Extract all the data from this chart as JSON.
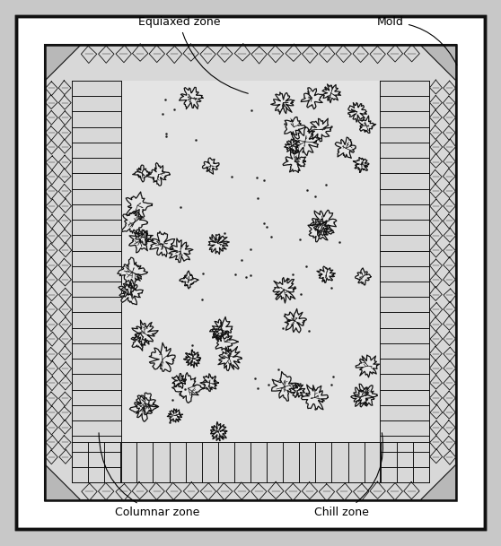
{
  "bg_color": "#c8c8c8",
  "fig_w": 5.58,
  "fig_h": 6.09,
  "dpi": 100,
  "line_color": "#111111",
  "white": "#ffffff",
  "light_gray": "#d8d8d8",
  "labels": {
    "equiaxed_zone": "Equiaxed zone",
    "mold": "Mold",
    "columnar_zone": "Columnar zone",
    "chill_zone": "Chill zone"
  },
  "font_size": 9
}
